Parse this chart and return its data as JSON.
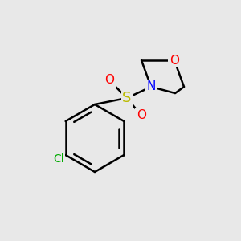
{
  "bg_color": "#e8e8e8",
  "bond_color": "#000000",
  "bond_lw": 1.8,
  "atom_colors": {
    "N": "#0000ff",
    "O": "#ff0000",
    "S": "#bbbb00",
    "Cl": "#00aa00"
  },
  "font_size": 11,
  "font_size_cl": 10
}
